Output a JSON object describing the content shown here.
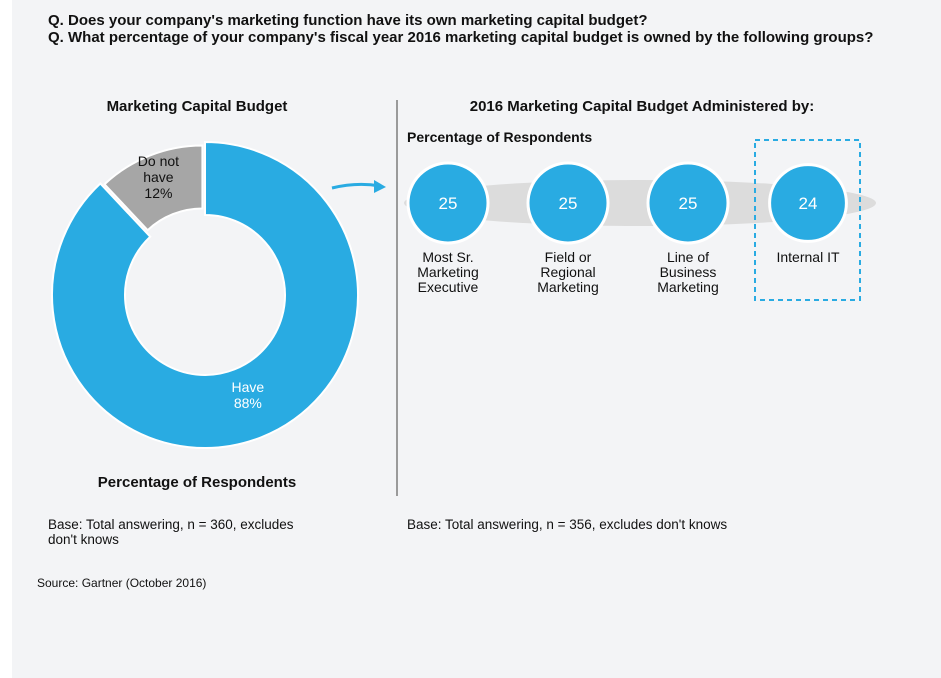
{
  "questions": [
    "Q. Does your company's marketing function have its own marketing capital budget?",
    "Q. What percentage of your company's fiscal year 2016 marketing capital budget is owned by the following groups?"
  ],
  "chart_data": [
    {
      "type": "donut",
      "title": "Marketing Capital Budget",
      "xlabel": "Percentage of Respondents",
      "categories": [
        "Have",
        "Do not have"
      ],
      "values": [
        88,
        12
      ],
      "value_labels": [
        "88%",
        "12%"
      ],
      "colors": [
        "#29abe2",
        "#a6a6a6"
      ],
      "note": "Base: Total answering, n = 360, excludes don't knows"
    },
    {
      "type": "bubble",
      "title": "2016 Marketing Capital Budget Administered by:",
      "subtitle": "Percentage of Respondents",
      "categories": [
        "Most Sr. Marketing Executive",
        "Field or Regional Marketing",
        "Line of Business Marketing",
        "Internal IT"
      ],
      "values": [
        25,
        25,
        25,
        24
      ],
      "color": "#29abe2",
      "note": "Base: Total answering, n = 356, excludes don't knows"
    }
  ],
  "source": "Source: Gartner (October 2016)"
}
